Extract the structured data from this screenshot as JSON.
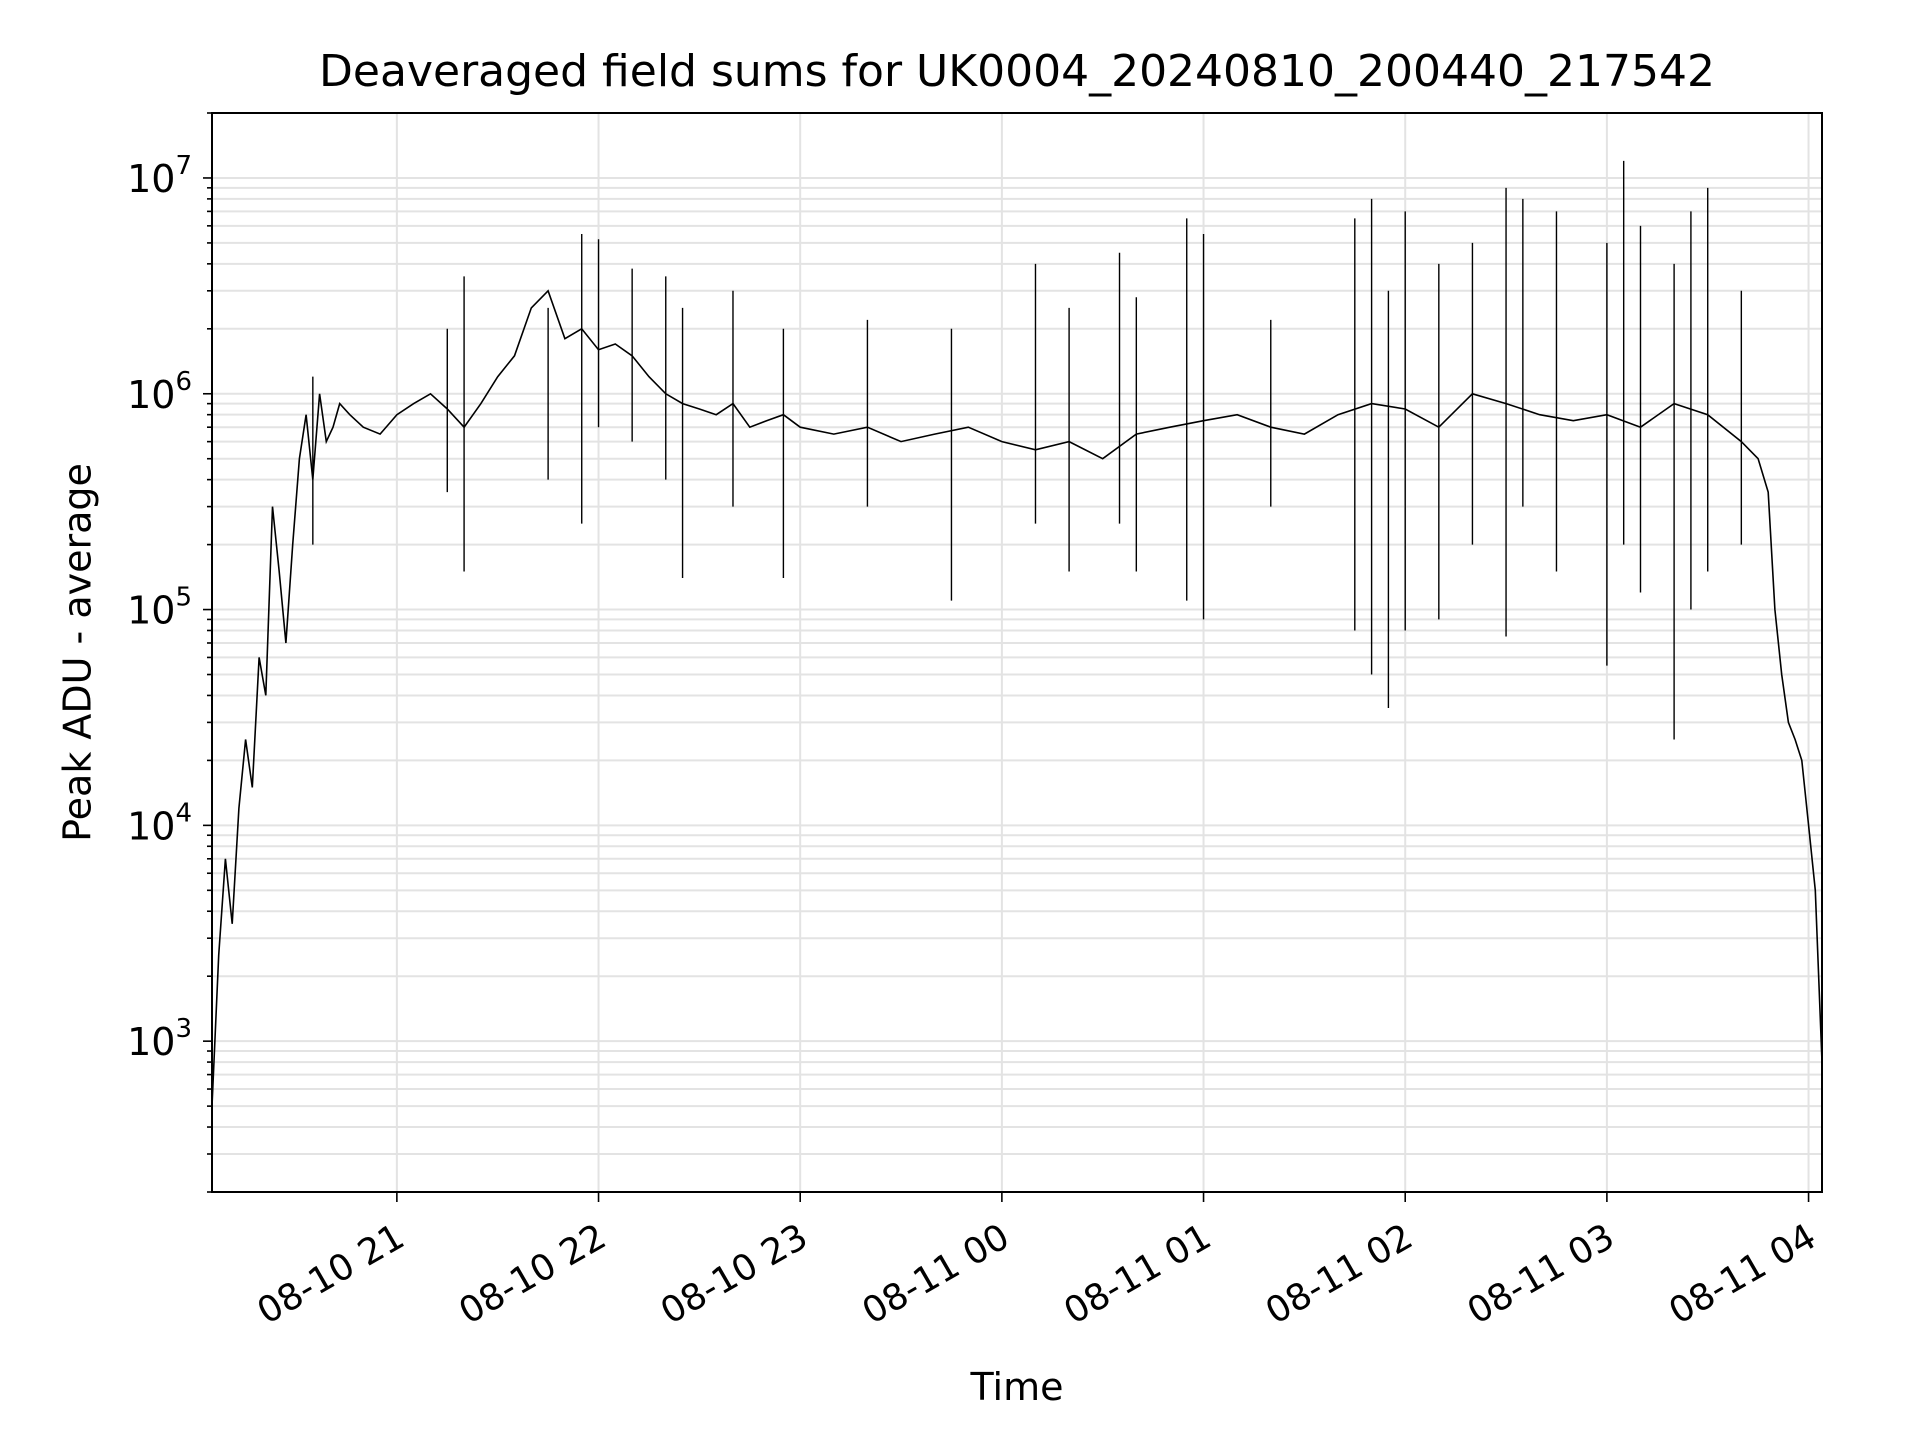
{
  "chart_data": {
    "type": "line",
    "title": "Deaveraged field sums for UK0004_20240810_200440_217542",
    "xlabel": "Time",
    "ylabel": "Peak ADU - average",
    "yscale": "log",
    "ylim": [
      200,
      20000000
    ],
    "xlim": [
      "2024-08-10 20:05",
      "2024-08-11 04:04"
    ],
    "grid": true,
    "line_color": "#000000",
    "x_ticks": [
      {
        "value": "2024-08-10 21:00",
        "label": "08-10 21"
      },
      {
        "value": "2024-08-10 22:00",
        "label": "08-10 22"
      },
      {
        "value": "2024-08-10 23:00",
        "label": "08-10 23"
      },
      {
        "value": "2024-08-11 00:00",
        "label": "08-11 00"
      },
      {
        "value": "2024-08-11 01:00",
        "label": "08-11 01"
      },
      {
        "value": "2024-08-11 02:00",
        "label": "08-11 02"
      },
      {
        "value": "2024-08-11 03:00",
        "label": "08-11 03"
      },
      {
        "value": "2024-08-11 04:00",
        "label": "08-11 04"
      }
    ],
    "y_ticks": [
      {
        "value": 1000,
        "base": "10",
        "exp": "3"
      },
      {
        "value": 10000,
        "base": "10",
        "exp": "4"
      },
      {
        "value": 100000,
        "base": "10",
        "exp": "5"
      },
      {
        "value": 1000000,
        "base": "10",
        "exp": "6"
      },
      {
        "value": 10000000,
        "base": "10",
        "exp": "7"
      }
    ],
    "series": [
      {
        "x": [
          "2024-08-10 20:05",
          "2024-08-10 20:07",
          "2024-08-10 20:09",
          "2024-08-10 20:11",
          "2024-08-10 20:13",
          "2024-08-10 20:15",
          "2024-08-10 20:17",
          "2024-08-10 20:19",
          "2024-08-10 20:21",
          "2024-08-10 20:23",
          "2024-08-10 20:25",
          "2024-08-10 20:27",
          "2024-08-10 20:29",
          "2024-08-10 20:31",
          "2024-08-10 20:33",
          "2024-08-10 20:35",
          "2024-08-10 20:37",
          "2024-08-10 20:39",
          "2024-08-10 20:41",
          "2024-08-10 20:43",
          "2024-08-10 20:46",
          "2024-08-10 20:50",
          "2024-08-10 20:55",
          "2024-08-10 21:00",
          "2024-08-10 21:05",
          "2024-08-10 21:10",
          "2024-08-10 21:15",
          "2024-08-10 21:20",
          "2024-08-10 21:25",
          "2024-08-10 21:30",
          "2024-08-10 21:35",
          "2024-08-10 21:40",
          "2024-08-10 21:45",
          "2024-08-10 21:50",
          "2024-08-10 21:55",
          "2024-08-10 22:00",
          "2024-08-10 22:05",
          "2024-08-10 22:10",
          "2024-08-10 22:15",
          "2024-08-10 22:20",
          "2024-08-10 22:25",
          "2024-08-10 22:30",
          "2024-08-10 22:35",
          "2024-08-10 22:40",
          "2024-08-10 22:45",
          "2024-08-10 22:50",
          "2024-08-10 22:55",
          "2024-08-10 23:00",
          "2024-08-10 23:10",
          "2024-08-10 23:20",
          "2024-08-10 23:30",
          "2024-08-10 23:40",
          "2024-08-10 23:50",
          "2024-08-11 00:00",
          "2024-08-11 00:10",
          "2024-08-11 00:20",
          "2024-08-11 00:30",
          "2024-08-11 00:40",
          "2024-08-11 00:50",
          "2024-08-11 01:00",
          "2024-08-11 01:10",
          "2024-08-11 01:20",
          "2024-08-11 01:30",
          "2024-08-11 01:40",
          "2024-08-11 01:50",
          "2024-08-11 02:00",
          "2024-08-11 02:10",
          "2024-08-11 02:20",
          "2024-08-11 02:30",
          "2024-08-11 02:40",
          "2024-08-11 02:50",
          "2024-08-11 03:00",
          "2024-08-11 03:10",
          "2024-08-11 03:20",
          "2024-08-11 03:30",
          "2024-08-11 03:40",
          "2024-08-11 03:45",
          "2024-08-11 03:48",
          "2024-08-11 03:50",
          "2024-08-11 03:52",
          "2024-08-11 03:54",
          "2024-08-11 03:56",
          "2024-08-11 03:58",
          "2024-08-11 04:00",
          "2024-08-11 04:02",
          "2024-08-11 04:04"
        ],
        "y": [
          500,
          2500,
          7000,
          3500,
          12000,
          25000,
          15000,
          60000,
          40000,
          300000,
          150000,
          70000,
          200000,
          500000,
          800000,
          400000,
          1000000,
          600000,
          700000,
          900000,
          800000,
          700000,
          650000,
          800000,
          900000,
          1000000,
          850000,
          700000,
          900000,
          1200000,
          1500000,
          2500000,
          3000000,
          1800000,
          2000000,
          1600000,
          1700000,
          1500000,
          1200000,
          1000000,
          900000,
          850000,
          800000,
          900000,
          700000,
          750000,
          800000,
          700000,
          650000,
          700000,
          600000,
          650000,
          700000,
          600000,
          550000,
          600000,
          500000,
          650000,
          700000,
          750000,
          800000,
          700000,
          650000,
          800000,
          900000,
          850000,
          700000,
          1000000,
          900000,
          800000,
          750000,
          800000,
          700000,
          900000,
          800000,
          600000,
          500000,
          350000,
          100000,
          50000,
          30000,
          25000,
          20000,
          10000,
          5000,
          800
        ],
        "spikes": [
          {
            "x": "2024-08-10 20:35",
            "low": 200000,
            "high": 1200000
          },
          {
            "x": "2024-08-10 21:15",
            "low": 350000,
            "high": 2000000
          },
          {
            "x": "2024-08-10 21:20",
            "low": 150000,
            "high": 3500000
          },
          {
            "x": "2024-08-10 21:45",
            "low": 400000,
            "high": 2500000
          },
          {
            "x": "2024-08-10 21:55",
            "low": 250000,
            "high": 5500000
          },
          {
            "x": "2024-08-10 22:00",
            "low": 700000,
            "high": 5200000
          },
          {
            "x": "2024-08-10 22:10",
            "low": 600000,
            "high": 3800000
          },
          {
            "x": "2024-08-10 22:20",
            "low": 400000,
            "high": 3500000
          },
          {
            "x": "2024-08-10 22:25",
            "low": 140000,
            "high": 2500000
          },
          {
            "x": "2024-08-10 22:40",
            "low": 300000,
            "high": 3000000
          },
          {
            "x": "2024-08-10 22:55",
            "low": 140000,
            "high": 2000000
          },
          {
            "x": "2024-08-10 23:20",
            "low": 300000,
            "high": 2200000
          },
          {
            "x": "2024-08-10 23:45",
            "low": 110000,
            "high": 2000000
          },
          {
            "x": "2024-08-11 00:10",
            "low": 250000,
            "high": 4000000
          },
          {
            "x": "2024-08-11 00:20",
            "low": 150000,
            "high": 2500000
          },
          {
            "x": "2024-08-11 00:35",
            "low": 250000,
            "high": 4500000
          },
          {
            "x": "2024-08-11 00:40",
            "low": 150000,
            "high": 2800000
          },
          {
            "x": "2024-08-11 00:55",
            "low": 110000,
            "high": 6500000
          },
          {
            "x": "2024-08-11 01:00",
            "low": 90000,
            "high": 5500000
          },
          {
            "x": "2024-08-11 01:20",
            "low": 300000,
            "high": 2200000
          },
          {
            "x": "2024-08-11 01:45",
            "low": 80000,
            "high": 6500000
          },
          {
            "x": "2024-08-11 01:50",
            "low": 50000,
            "high": 8000000
          },
          {
            "x": "2024-08-11 01:55",
            "low": 35000,
            "high": 3000000
          },
          {
            "x": "2024-08-11 02:00",
            "low": 80000,
            "high": 7000000
          },
          {
            "x": "2024-08-11 02:10",
            "low": 90000,
            "high": 4000000
          },
          {
            "x": "2024-08-11 02:20",
            "low": 200000,
            "high": 5000000
          },
          {
            "x": "2024-08-11 02:30",
            "low": 75000,
            "high": 9000000
          },
          {
            "x": "2024-08-11 02:35",
            "low": 300000,
            "high": 8000000
          },
          {
            "x": "2024-08-11 02:45",
            "low": 150000,
            "high": 7000000
          },
          {
            "x": "2024-08-11 03:00",
            "low": 55000,
            "high": 5000000
          },
          {
            "x": "2024-08-11 03:05",
            "low": 200000,
            "high": 12000000
          },
          {
            "x": "2024-08-11 03:10",
            "low": 120000,
            "high": 6000000
          },
          {
            "x": "2024-08-11 03:20",
            "low": 25000,
            "high": 4000000
          },
          {
            "x": "2024-08-11 03:25",
            "low": 100000,
            "high": 7000000
          },
          {
            "x": "2024-08-11 03:30",
            "low": 150000,
            "high": 9000000
          },
          {
            "x": "2024-08-11 03:40",
            "low": 200000,
            "high": 3000000
          }
        ]
      }
    ]
  }
}
